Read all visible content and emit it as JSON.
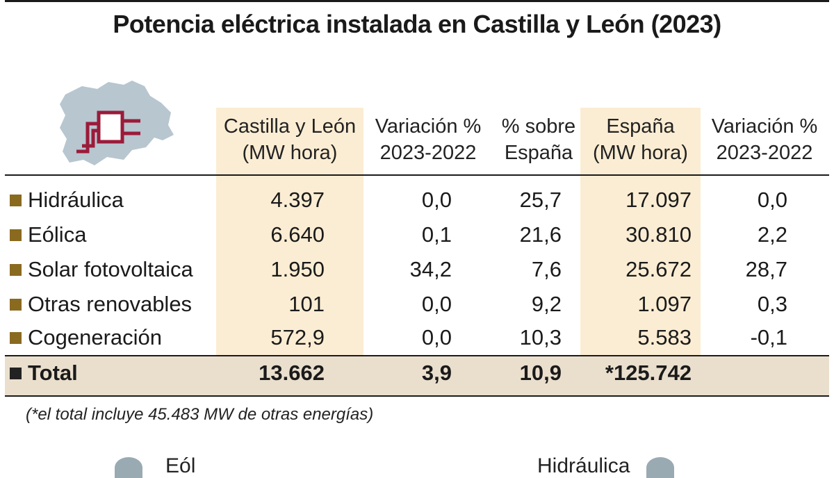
{
  "title": "Potencia eléctrica instalada en Castilla y León (2023)",
  "headers": [
    {
      "line1": "Castilla y León",
      "line2": "(MW hora)"
    },
    {
      "line1": "Variación %",
      "line2": "2023-2022"
    },
    {
      "line1": "% sobre",
      "line2": "España"
    },
    {
      "line1": "España",
      "line2": "(MW hora)"
    },
    {
      "line1": "Variación %",
      "line2": "2023-2022"
    }
  ],
  "rows": [
    {
      "label": "Hidráulica",
      "values": [
        "4.397",
        "0,0",
        "25,7",
        "17.097",
        "0,0"
      ]
    },
    {
      "label": "Eólica",
      "values": [
        "6.640",
        "0,1",
        "21,6",
        "30.810",
        "2,2"
      ]
    },
    {
      "label": "Solar fotovoltaica",
      "values": [
        "1.950",
        "34,2",
        "7,6",
        "25.672",
        "28,7"
      ]
    },
    {
      "label": "Otras renovables",
      "values": [
        "101",
        "0,0",
        "9,2",
        "1.097",
        "0,3"
      ]
    },
    {
      "label": "Cogeneración",
      "values": [
        "572,9",
        "0,0",
        "10,3",
        "5.583",
        "-0,1"
      ]
    }
  ],
  "total": {
    "label": "Total",
    "values": [
      "13.662",
      "3,9",
      "10,9",
      "*125.742",
      ""
    ]
  },
  "footnote": "(*el total incluye 45.483 MW de otras energías)",
  "bottom": {
    "left_text": "Eól",
    "right_text": "Hidráulica"
  },
  "colors": {
    "highlight": "#fbedd3",
    "total_band": "#eadfcd",
    "bullet": "#8a6a1f",
    "plug": "#9b1b3a",
    "map": "#b7c6cf"
  },
  "icons": [
    "castilla-y-leon-map-icon",
    "plug-icon",
    "wind-turbine-icon",
    "dam-icon"
  ]
}
